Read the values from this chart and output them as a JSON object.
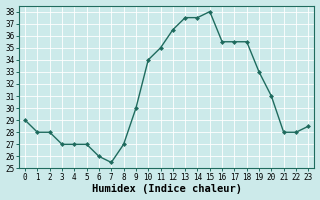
{
  "x": [
    0,
    1,
    2,
    3,
    4,
    5,
    6,
    7,
    8,
    9,
    10,
    11,
    12,
    13,
    14,
    15,
    16,
    17,
    18,
    19,
    20,
    21,
    22,
    23
  ],
  "y": [
    29,
    28,
    28,
    27,
    27,
    27,
    26,
    25.5,
    27,
    30,
    34,
    35,
    36.5,
    37.5,
    37.5,
    38,
    35.5,
    35.5,
    35.5,
    33,
    31,
    28,
    28,
    28.5
  ],
  "line_color": "#1f6b5e",
  "marker": "D",
  "marker_size": 2.0,
  "linewidth": 1.0,
  "bg_color": "#cceaea",
  "grid_color": "#ffffff",
  "xlabel": "Humidex (Indice chaleur)",
  "xlim": [
    -0.5,
    23.5
  ],
  "ylim": [
    25,
    38.5
  ],
  "yticks": [
    25,
    26,
    27,
    28,
    29,
    30,
    31,
    32,
    33,
    34,
    35,
    36,
    37,
    38
  ],
  "xtick_labels": [
    "0",
    "1",
    "2",
    "3",
    "4",
    "5",
    "6",
    "7",
    "8",
    "9",
    "10",
    "11",
    "12",
    "13",
    "14",
    "15",
    "16",
    "17",
    "18",
    "19",
    "20",
    "21",
    "22",
    "23"
  ],
  "tick_fontsize": 5.5,
  "xlabel_fontsize": 7.5,
  "grid_linewidth": 0.6
}
